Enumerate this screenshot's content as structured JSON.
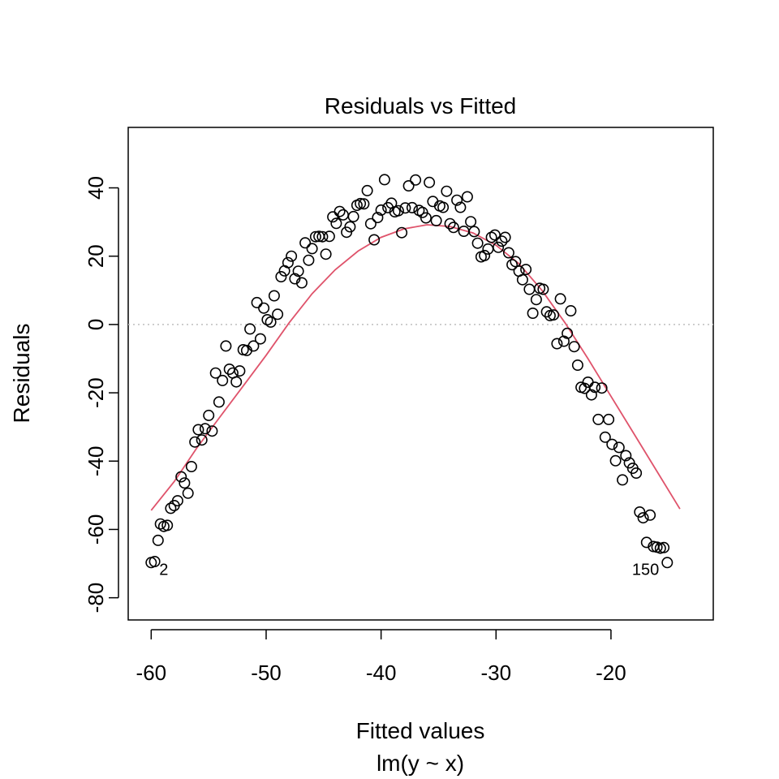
{
  "chart_data": {
    "type": "scatter",
    "title": "Residuals vs Fitted",
    "xlabel": "Fitted values",
    "subtitle": "lm(y ~ x)",
    "ylabel": "Residuals",
    "xlim": [
      -62,
      -11.1
    ],
    "ylim": [
      -86.5,
      57.7
    ],
    "x_ticks": [
      -60,
      -50,
      -40,
      -30,
      -20
    ],
    "y_ticks": [
      -80,
      -60,
      -40,
      -20,
      0,
      20,
      40
    ],
    "reference_line": {
      "y": 0,
      "style": "dotted",
      "color": "#BEBEBE"
    },
    "smooth_color": "#DF536B",
    "point_color": "#000000",
    "points": [
      [
        -60.0,
        -69.7
      ],
      [
        -59.7,
        -69.4
      ],
      [
        -59.4,
        -63.2
      ],
      [
        -59.2,
        -58.4
      ],
      [
        -58.9,
        -59.1
      ],
      [
        -58.6,
        -58.8
      ],
      [
        -58.3,
        -53.8
      ],
      [
        -58.0,
        -53.0
      ],
      [
        -57.7,
        -51.6
      ],
      [
        -57.4,
        -44.6
      ],
      [
        -57.1,
        -46.4
      ],
      [
        -56.8,
        -49.4
      ],
      [
        -56.5,
        -41.6
      ],
      [
        -56.2,
        -34.4
      ],
      [
        -55.9,
        -30.8
      ],
      [
        -55.6,
        -33.8
      ],
      [
        -55.3,
        -30.5
      ],
      [
        -55.0,
        -26.6
      ],
      [
        -54.7,
        -31.2
      ],
      [
        -54.4,
        -14.2
      ],
      [
        -54.1,
        -22.7
      ],
      [
        -53.8,
        -16.4
      ],
      [
        -53.5,
        -6.3
      ],
      [
        -53.2,
        -13.1
      ],
      [
        -52.9,
        -14.2
      ],
      [
        -52.6,
        -16.8
      ],
      [
        -52.3,
        -13.6
      ],
      [
        -52.0,
        -7.4
      ],
      [
        -51.7,
        -7.6
      ],
      [
        -51.4,
        -1.3
      ],
      [
        -51.1,
        -6.3
      ],
      [
        -50.8,
        6.4
      ],
      [
        -50.5,
        -4.2
      ],
      [
        -50.2,
        4.8
      ],
      [
        -49.9,
        1.4
      ],
      [
        -49.6,
        0.7
      ],
      [
        -49.3,
        8.4
      ],
      [
        -49.0,
        3.0
      ],
      [
        -48.7,
        14.0
      ],
      [
        -48.4,
        15.7
      ],
      [
        -48.1,
        18.1
      ],
      [
        -47.8,
        20.0
      ],
      [
        -47.5,
        13.4
      ],
      [
        -47.2,
        15.6
      ],
      [
        -46.9,
        12.2
      ],
      [
        -46.6,
        23.9
      ],
      [
        -46.3,
        18.8
      ],
      [
        -46.0,
        22.2
      ],
      [
        -45.7,
        25.7
      ],
      [
        -45.4,
        25.8
      ],
      [
        -45.1,
        25.7
      ],
      [
        -44.8,
        20.6
      ],
      [
        -44.5,
        25.8
      ],
      [
        -44.2,
        31.5
      ],
      [
        -43.9,
        29.6
      ],
      [
        -43.6,
        33.1
      ],
      [
        -43.3,
        32.1
      ],
      [
        -43.0,
        27.0
      ],
      [
        -42.7,
        28.6
      ],
      [
        -42.4,
        31.6
      ],
      [
        -42.1,
        34.9
      ],
      [
        -41.8,
        35.4
      ],
      [
        -41.5,
        35.3
      ],
      [
        -41.2,
        39.2
      ],
      [
        -40.9,
        29.5
      ],
      [
        -40.6,
        24.8
      ],
      [
        -40.3,
        31.3
      ],
      [
        -40.0,
        33.5
      ],
      [
        -39.7,
        42.4
      ],
      [
        -39.4,
        34.2
      ],
      [
        -39.1,
        35.5
      ],
      [
        -38.8,
        33.0
      ],
      [
        -38.5,
        33.3
      ],
      [
        -38.2,
        26.9
      ],
      [
        -37.9,
        34.1
      ],
      [
        -37.6,
        40.6
      ],
      [
        -37.3,
        34.2
      ],
      [
        -37.0,
        42.3
      ],
      [
        -36.7,
        33.4
      ],
      [
        -36.4,
        32.8
      ],
      [
        -36.1,
        31.2
      ],
      [
        -35.8,
        41.6
      ],
      [
        -35.5,
        36.0
      ],
      [
        -35.2,
        30.4
      ],
      [
        -34.9,
        34.7
      ],
      [
        -34.6,
        34.3
      ],
      [
        -34.3,
        39.0
      ],
      [
        -34.0,
        29.5
      ],
      [
        -33.7,
        28.4
      ],
      [
        -33.4,
        36.4
      ],
      [
        -33.1,
        34.3
      ],
      [
        -32.8,
        27.3
      ],
      [
        -32.5,
        37.4
      ],
      [
        -32.2,
        30.1
      ],
      [
        -31.9,
        27.2
      ],
      [
        -31.6,
        23.8
      ],
      [
        -31.3,
        19.8
      ],
      [
        -31.0,
        20.2
      ],
      [
        -30.7,
        22.1
      ],
      [
        -30.4,
        25.5
      ],
      [
        -30.1,
        26.2
      ],
      [
        -29.8,
        22.6
      ],
      [
        -29.5,
        24.4
      ],
      [
        -29.2,
        25.5
      ],
      [
        -28.9,
        21.0
      ],
      [
        -28.6,
        17.5
      ],
      [
        -28.3,
        18.4
      ],
      [
        -28.0,
        15.6
      ],
      [
        -27.7,
        13.1
      ],
      [
        -27.4,
        16.1
      ],
      [
        -27.1,
        10.3
      ],
      [
        -26.8,
        3.3
      ],
      [
        -26.5,
        7.3
      ],
      [
        -26.2,
        10.6
      ],
      [
        -25.9,
        10.3
      ],
      [
        -25.6,
        3.7
      ],
      [
        -25.3,
        2.6
      ],
      [
        -25.0,
        2.8
      ],
      [
        -24.7,
        -5.6
      ],
      [
        -24.4,
        7.5
      ],
      [
        -24.1,
        -4.9
      ],
      [
        -23.8,
        -2.6
      ],
      [
        -23.5,
        4.0
      ],
      [
        -23.2,
        -6.5
      ],
      [
        -22.9,
        -11.9
      ],
      [
        -22.6,
        -18.4
      ],
      [
        -22.3,
        -18.7
      ],
      [
        -22.0,
        -16.9
      ],
      [
        -21.7,
        -20.6
      ],
      [
        -21.4,
        -18.4
      ],
      [
        -21.1,
        -27.8
      ],
      [
        -20.8,
        -18.6
      ],
      [
        -20.5,
        -33.0
      ],
      [
        -20.2,
        -27.8
      ],
      [
        -19.9,
        -35.1
      ],
      [
        -19.6,
        -39.9
      ],
      [
        -19.3,
        -36.0
      ],
      [
        -19.0,
        -45.5
      ],
      [
        -18.7,
        -38.4
      ],
      [
        -18.4,
        -40.5
      ],
      [
        -18.1,
        -42.1
      ],
      [
        -17.8,
        -43.5
      ],
      [
        -17.5,
        -54.9
      ],
      [
        -17.2,
        -56.6
      ],
      [
        -16.9,
        -63.8
      ],
      [
        -16.6,
        -55.8
      ],
      [
        -16.3,
        -65.0
      ],
      [
        -16.0,
        -65.2
      ],
      [
        -15.7,
        -65.5
      ],
      [
        -15.4,
        -65.3
      ],
      [
        -15.1,
        -69.7
      ]
    ],
    "smooth": [
      [
        -60.0,
        -54.4
      ],
      [
        -58.0,
        -46.0
      ],
      [
        -56.0,
        -36.0
      ],
      [
        -54.0,
        -27.0
      ],
      [
        -52.0,
        -18.0
      ],
      [
        -50.0,
        -9.0
      ],
      [
        -48.0,
        0.5
      ],
      [
        -46.0,
        9.0
      ],
      [
        -44.0,
        16.0
      ],
      [
        -42.0,
        21.5
      ],
      [
        -40.0,
        25.5
      ],
      [
        -38.0,
        28.0
      ],
      [
        -36.0,
        29.2
      ],
      [
        -34.0,
        28.7
      ],
      [
        -32.0,
        26.8
      ],
      [
        -30.0,
        23.2
      ],
      [
        -28.0,
        17.8
      ],
      [
        -26.0,
        10.0
      ],
      [
        -24.0,
        0.5
      ],
      [
        -22.0,
        -10.0
      ],
      [
        -20.0,
        -21.0
      ],
      [
        -18.0,
        -32.0
      ],
      [
        -16.0,
        -43.0
      ],
      [
        -14.0,
        -54.0
      ]
    ],
    "point_labels": [
      {
        "text": "2",
        "x": -60.0,
        "y": -69.7,
        "side": "right"
      },
      {
        "text": "150",
        "x": -15.1,
        "y": -69.7,
        "side": "left"
      }
    ]
  }
}
